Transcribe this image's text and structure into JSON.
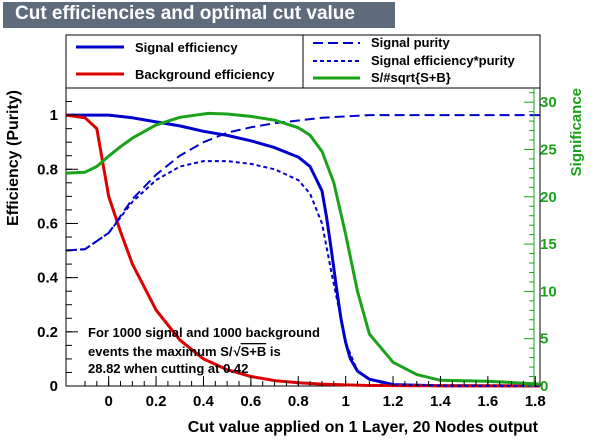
{
  "window": {
    "title": "Cut efficiencies and optimal cut value"
  },
  "chart_data": {
    "type": "line",
    "title": "Cut efficiencies and optimal cut value",
    "xlabel": "Cut value applied on 1 Layer, 20 Nodes output",
    "ylabel": "Efficiency (Purity)",
    "y2label": "Significance",
    "xlim": [
      -0.18,
      1.82
    ],
    "ylim": [
      0,
      1.1
    ],
    "y2lim": [
      0,
      31.5
    ],
    "xticks": [
      "0",
      "0.2",
      "0.4",
      "0.6",
      "0.8",
      "1",
      "1.2",
      "1.4",
      "1.6",
      "1.8"
    ],
    "yticks": [
      "0",
      "0.2",
      "0.4",
      "0.6",
      "0.8",
      "1"
    ],
    "y2ticks": [
      "0",
      "5",
      "10",
      "15",
      "20",
      "25",
      "30"
    ],
    "grid": false,
    "legend": "top",
    "series": [
      {
        "name": "Signal efficiency",
        "axis": "left",
        "color": "#0000cc",
        "style": "solid",
        "x": [
          -0.18,
          0.0,
          0.1,
          0.2,
          0.3,
          0.4,
          0.5,
          0.6,
          0.7,
          0.8,
          0.85,
          0.9,
          0.92,
          0.94,
          0.96,
          0.98,
          1.0,
          1.02,
          1.05,
          1.1,
          1.2,
          1.4,
          1.82
        ],
        "y": [
          1.0,
          1.0,
          0.99,
          0.975,
          0.96,
          0.94,
          0.925,
          0.905,
          0.88,
          0.845,
          0.81,
          0.72,
          0.62,
          0.5,
          0.37,
          0.25,
          0.16,
          0.1,
          0.055,
          0.025,
          0.005,
          0.001,
          0.0
        ]
      },
      {
        "name": "Background efficiency",
        "axis": "left",
        "color": "#dd0000",
        "style": "solid",
        "x": [
          -0.18,
          -0.1,
          -0.05,
          0.0,
          0.05,
          0.1,
          0.2,
          0.3,
          0.4,
          0.5,
          0.6,
          0.7,
          0.8,
          0.9,
          1.0,
          1.1,
          1.3,
          1.82
        ],
        "y": [
          1.0,
          0.99,
          0.95,
          0.7,
          0.57,
          0.45,
          0.28,
          0.17,
          0.1,
          0.06,
          0.035,
          0.02,
          0.012,
          0.007,
          0.004,
          0.002,
          0.001,
          0.0
        ]
      },
      {
        "name": "Signal purity",
        "axis": "left",
        "color": "#0000cc",
        "style": "dashed",
        "x": [
          -0.18,
          -0.1,
          0.0,
          0.1,
          0.2,
          0.3,
          0.4,
          0.5,
          0.6,
          0.7,
          0.8,
          0.9,
          1.0,
          1.1,
          1.2,
          1.4,
          1.6,
          1.82
        ],
        "y": [
          0.5,
          0.505,
          0.565,
          0.69,
          0.78,
          0.85,
          0.9,
          0.935,
          0.955,
          0.97,
          0.98,
          0.99,
          0.995,
          1.0,
          1.0,
          1.0,
          1.0,
          1.0
        ]
      },
      {
        "name": "Signal efficiency*purity",
        "axis": "left",
        "color": "#0000cc",
        "style": "dotted",
        "x": [
          -0.18,
          -0.1,
          0.0,
          0.1,
          0.2,
          0.3,
          0.4,
          0.5,
          0.6,
          0.7,
          0.8,
          0.85,
          0.9,
          0.94,
          0.98,
          1.0,
          1.05,
          1.1,
          1.2,
          1.4,
          1.82
        ],
        "y": [
          0.5,
          0.505,
          0.565,
          0.68,
          0.76,
          0.81,
          0.83,
          0.83,
          0.82,
          0.8,
          0.76,
          0.71,
          0.6,
          0.42,
          0.25,
          0.16,
          0.055,
          0.025,
          0.005,
          0.001,
          0.0
        ]
      },
      {
        "name": "S/#sqrt{S+B}",
        "axis": "right",
        "color": "#1aa31a",
        "style": "solid",
        "x": [
          -0.18,
          -0.1,
          -0.05,
          0.0,
          0.05,
          0.1,
          0.2,
          0.3,
          0.42,
          0.5,
          0.6,
          0.7,
          0.8,
          0.85,
          0.9,
          0.95,
          1.0,
          1.05,
          1.1,
          1.2,
          1.3,
          1.4,
          1.6,
          1.82
        ],
        "y": [
          22.5,
          22.6,
          23.2,
          24.3,
          25.3,
          26.2,
          27.6,
          28.4,
          28.82,
          28.75,
          28.5,
          28.1,
          27.3,
          26.5,
          24.8,
          21.5,
          16.0,
          10.0,
          5.5,
          2.5,
          1.2,
          0.6,
          0.5,
          0.2
        ]
      }
    ],
    "annotation": {
      "line1": "For 1000 signal and 1000 background",
      "line2_prefix": "events the maximum S/",
      "line2_sqrt": "S+B",
      "line2_suffix": " is",
      "line3": "28.82 when cutting at  0.42"
    },
    "colors": {
      "signal": "#0000cc",
      "background": "#dd0000",
      "significance": "#1aa31a",
      "title_bg": "#5d6b7d"
    }
  }
}
